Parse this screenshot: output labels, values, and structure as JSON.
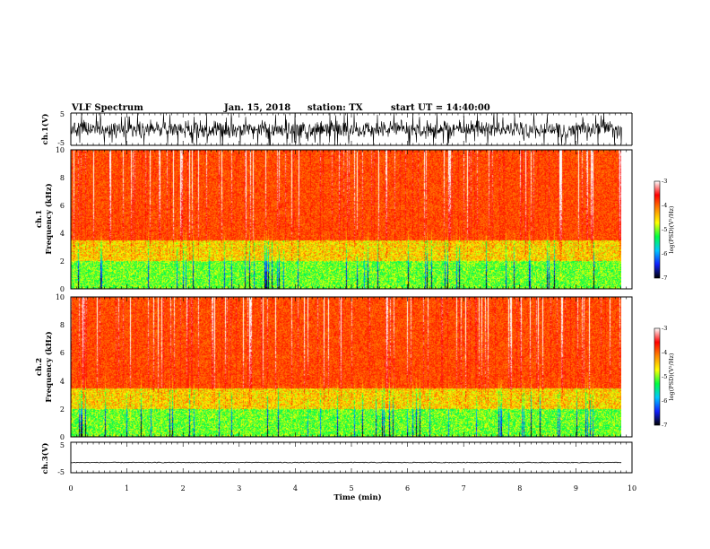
{
  "header": {
    "instrument": "VLF Spectrum",
    "date": "Jan. 15, 2018",
    "station": "station: TX",
    "start_time": "start UT = 14:40:00"
  },
  "chart_data": [
    {
      "type": "line",
      "panel": "ch1-waveform",
      "ylabel": "ch.1(V)",
      "ylim": [
        -5,
        5
      ],
      "yticks": [
        "5",
        "-5"
      ],
      "xlim": [
        0,
        10
      ],
      "data_end_min": 9.82,
      "style": "noisy-burst",
      "baseline_v": 0.0,
      "noise_amplitude_v": 3.0
    },
    {
      "type": "heatmap",
      "panel": "ch1-spectrogram",
      "ylabel": "ch.1",
      "ylabel2": "Frequency (kHz)",
      "xlim": [
        0,
        10
      ],
      "ylim": [
        0,
        10
      ],
      "yticks": [
        "0",
        "2",
        "4",
        "6",
        "8",
        "10"
      ],
      "data_end_min": 9.82,
      "colorbar": {
        "label": "log(PSD)(V²/Hz)",
        "range": [
          -7,
          -3
        ],
        "ticks": [
          "-3",
          "-4",
          "-5",
          "-6",
          "-7"
        ],
        "colors": [
          "#000000",
          "#1020ff",
          "#00c8ff",
          "#00ff40",
          "#ffff00",
          "#ff8800",
          "#ff0000",
          "#ffffff"
        ]
      }
    },
    {
      "type": "heatmap",
      "panel": "ch2-spectrogram",
      "ylabel": "ch.2",
      "ylabel2": "Frequency (kHz)",
      "xlim": [
        0,
        10
      ],
      "ylim": [
        0,
        10
      ],
      "yticks": [
        "0",
        "2",
        "4",
        "6",
        "8",
        "10"
      ],
      "data_end_min": 9.82,
      "colorbar": {
        "label": "log(PSD)(V²/Hz)",
        "range": [
          -7,
          -3
        ],
        "ticks": [
          "-3",
          "-4",
          "-5",
          "-6",
          "-7"
        ],
        "colors": [
          "#000000",
          "#1020ff",
          "#00c8ff",
          "#00ff40",
          "#ffff00",
          "#ff8800",
          "#ff0000",
          "#ffffff"
        ]
      }
    },
    {
      "type": "line",
      "panel": "ch3-waveform",
      "ylabel": "ch.3(V)",
      "ylim": [
        -5,
        5
      ],
      "yticks": [
        "5",
        "-5"
      ],
      "xlim": [
        0,
        10
      ],
      "data_end_min": 9.82,
      "style": "flat",
      "baseline_v": -2.0,
      "noise_amplitude_v": 0.15
    }
  ],
  "xaxis": {
    "label": "Time (min)",
    "ticks": [
      "0",
      "1",
      "2",
      "3",
      "4",
      "5",
      "6",
      "7",
      "8",
      "9",
      "10"
    ]
  }
}
